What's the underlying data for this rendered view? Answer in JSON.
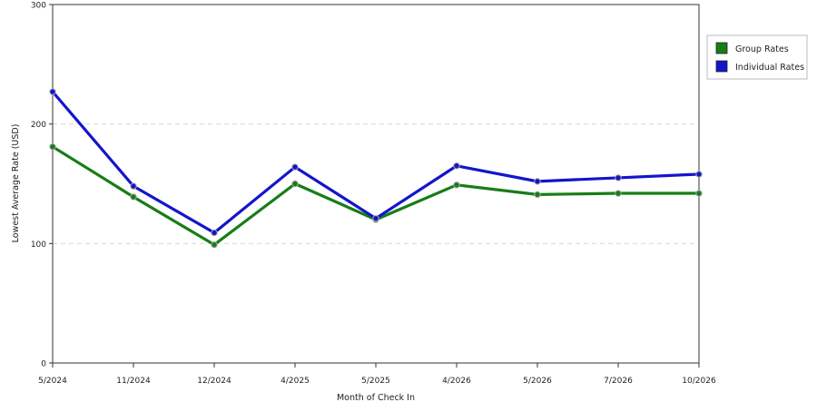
{
  "chart_data": {
    "type": "line",
    "title": "",
    "xlabel": "Month of Check In",
    "ylabel": "Lowest Average Rate (USD)",
    "categories": [
      "5/2024",
      "11/2024",
      "12/2024",
      "4/2025",
      "5/2025",
      "4/2026",
      "5/2026",
      "7/2026",
      "10/2026"
    ],
    "ylim": [
      0,
      300
    ],
    "yticks": [
      0,
      100,
      200,
      300
    ],
    "grid": "horizontal-dashed",
    "legend_position": "right",
    "series": [
      {
        "name": "Group Rates",
        "color": "#177d17",
        "values": [
          181,
          139,
          99,
          150,
          120,
          149,
          141,
          142,
          142
        ]
      },
      {
        "name": "Individual Rates",
        "color": "#1414cc",
        "values": [
          227,
          148,
          109,
          164,
          121,
          165,
          152,
          155,
          158
        ]
      }
    ]
  }
}
